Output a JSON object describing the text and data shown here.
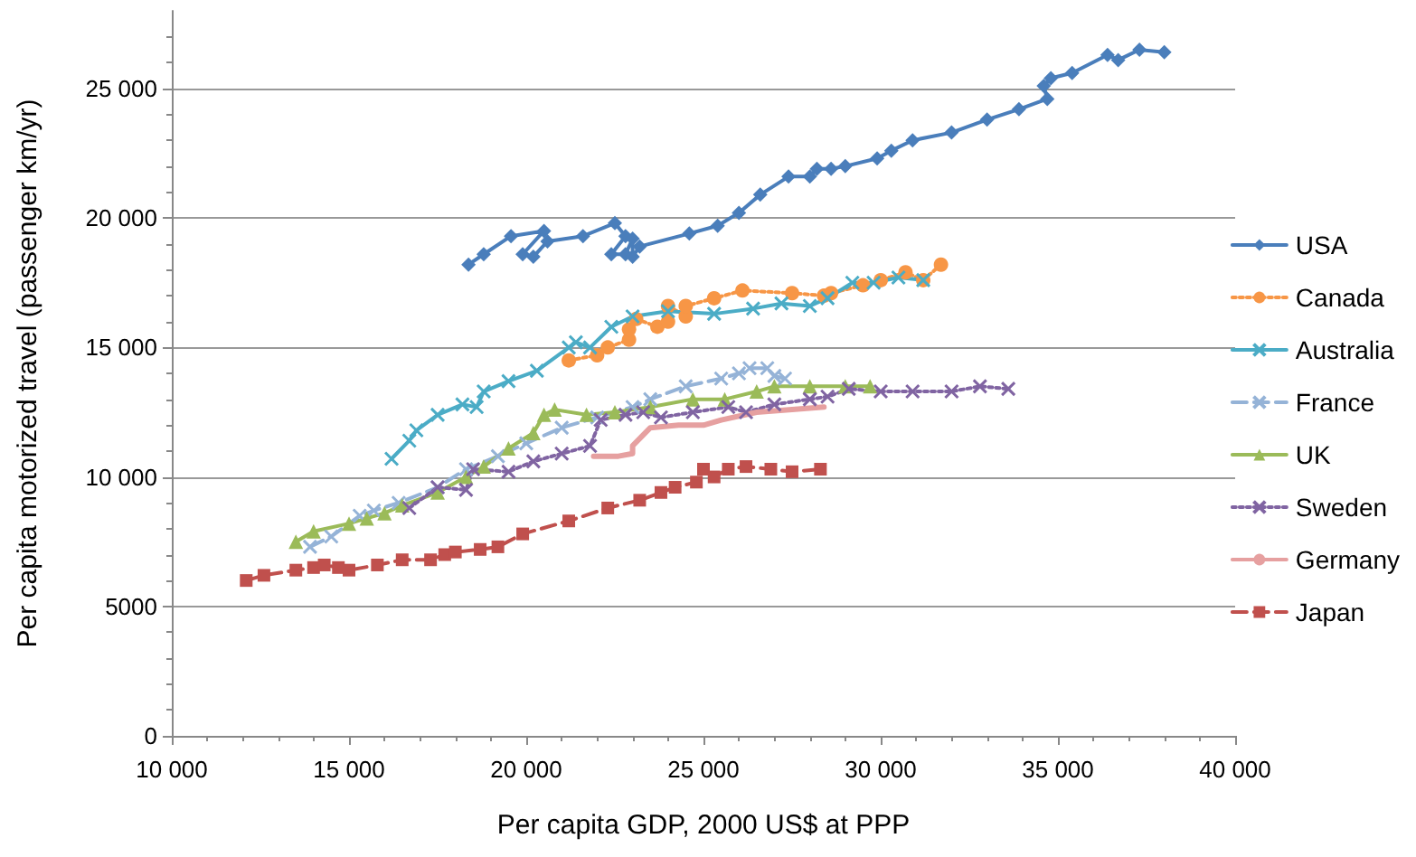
{
  "chart_data": {
    "type": "line",
    "xlabel": "Per capita GDP, 2000 US$ at PPP",
    "ylabel": "Per capita motorized travel (passenger km/yr)",
    "xlim": [
      10000,
      40000
    ],
    "xticks": [
      {
        "value": 10000,
        "label": "10 000"
      },
      {
        "value": 15000,
        "label": "15 000"
      },
      {
        "value": 20000,
        "label": "20 000"
      },
      {
        "value": 25000,
        "label": "25 000"
      },
      {
        "value": 30000,
        "label": "30 000"
      },
      {
        "value": 35000,
        "label": "35 000"
      },
      {
        "value": 40000,
        "label": "40 000"
      }
    ],
    "ylim": [
      0,
      28000
    ],
    "yticks": [
      0,
      5000,
      {
        "value": 10000,
        "label": "10 000"
      },
      {
        "value": 15000,
        "label": "15 000"
      },
      {
        "value": 20000,
        "label": "20 000"
      },
      {
        "value": 25000,
        "label": "25 000"
      }
    ],
    "grid": "y",
    "legend": "right",
    "series": [
      {
        "name": "USA",
        "color": "#4a7ebb",
        "marker": "diamond",
        "line_style": "solid",
        "x": [
          18370,
          18800,
          19570,
          20500,
          19900,
          20200,
          20600,
          21600,
          22500,
          22800,
          22400,
          22800,
          23000,
          23000,
          23200,
          24600,
          25400,
          26000,
          26600,
          27400,
          28000,
          28200,
          28600,
          29000,
          29900,
          30300,
          30900,
          32000,
          33000,
          33900,
          34700,
          34600,
          34800,
          35400,
          36400,
          36700,
          37300,
          38000
        ],
        "values": [
          18200,
          18600,
          19300,
          19500,
          18600,
          18500,
          19100,
          19300,
          19800,
          19300,
          18600,
          18600,
          19200,
          18500,
          18900,
          19400,
          19700,
          20200,
          20900,
          21600,
          21600,
          21900,
          21900,
          22000,
          22300,
          22600,
          23000,
          23300,
          23800,
          24200,
          24600,
          25100,
          25400,
          25600,
          26300,
          26100,
          26500,
          26400
        ]
      },
      {
        "name": "Canada",
        "color": "#f79646",
        "marker": "circle",
        "line_style": "dotted",
        "x": [
          21200,
          22000,
          22300,
          22900,
          22900,
          23100,
          23700,
          24000,
          24000,
          24500,
          24500,
          25300,
          26100,
          27500,
          28400,
          28600,
          29500,
          30000,
          30700,
          31200,
          31700
        ],
        "values": [
          14500,
          14700,
          15000,
          15300,
          15700,
          16100,
          15800,
          16000,
          16600,
          16200,
          16600,
          16900,
          17200,
          17100,
          17000,
          17100,
          17400,
          17600,
          17900,
          17600,
          18200
        ]
      },
      {
        "name": "Australia",
        "color": "#4bacc6",
        "marker": "cross",
        "line_style": "solid",
        "x": [
          16200,
          16700,
          16900,
          17500,
          18200,
          18600,
          18800,
          19500,
          20300,
          21200,
          21400,
          21800,
          22400,
          23000,
          24000,
          25300,
          26400,
          27200,
          28000,
          28500,
          29200,
          29800,
          30500,
          31200
        ],
        "values": [
          10700,
          11400,
          11800,
          12400,
          12800,
          12700,
          13300,
          13700,
          14100,
          15000,
          15200,
          15000,
          15800,
          16200,
          16400,
          16300,
          16500,
          16700,
          16600,
          16900,
          17500,
          17500,
          17700,
          17600
        ]
      },
      {
        "name": "France",
        "color": "#95b3d7",
        "marker": "cross",
        "line_style": "dashed",
        "x": [
          13900,
          14500,
          15300,
          15700,
          16400,
          17500,
          18300,
          19200,
          20000,
          21000,
          22000,
          23000,
          23500,
          24500,
          25500,
          26000,
          26300,
          26800,
          27000,
          27300
        ],
        "values": [
          7300,
          7700,
          8500,
          8700,
          9000,
          9600,
          10300,
          10800,
          11300,
          11900,
          12300,
          12700,
          13000,
          13500,
          13800,
          14000,
          14200,
          14200,
          13900,
          13800
        ]
      },
      {
        "name": "UK",
        "color": "#9bbb59",
        "marker": "triangle",
        "line_style": "solid",
        "x": [
          13500,
          14000,
          15000,
          15500,
          16000,
          16500,
          17500,
          18300,
          18800,
          19500,
          20200,
          20500,
          20800,
          21700,
          22500,
          23500,
          24700,
          25600,
          26500,
          27000,
          28000,
          29000,
          29700
        ],
        "values": [
          7500,
          7900,
          8200,
          8400,
          8600,
          8900,
          9400,
          10000,
          10400,
          11100,
          11700,
          12400,
          12600,
          12400,
          12500,
          12700,
          13000,
          13000,
          13300,
          13500,
          13500,
          13500,
          13500
        ]
      },
      {
        "name": "Sweden",
        "color": "#8064a2",
        "marker": "cross",
        "line_style": "dotted",
        "x": [
          16700,
          17500,
          18300,
          18500,
          19500,
          20200,
          21000,
          21800,
          22100,
          22800,
          23300,
          23800,
          24700,
          25700,
          26200,
          27000,
          28000,
          28500,
          29100,
          30000,
          30900,
          32000,
          32800,
          33600
        ],
        "values": [
          8800,
          9600,
          9500,
          10300,
          10200,
          10600,
          10900,
          11200,
          12200,
          12400,
          12500,
          12300,
          12500,
          12700,
          12500,
          12800,
          13000,
          13100,
          13400,
          13300,
          13300,
          13300,
          13500,
          13400
        ]
      },
      {
        "name": "Germany",
        "color": "#e6a0a0",
        "marker": "none",
        "line_style": "solid",
        "x": [
          21900,
          22600,
          23000,
          23000,
          23500,
          24300,
          25000,
          25500,
          26500,
          27500,
          28400
        ],
        "values": [
          10800,
          10800,
          10900,
          11200,
          11900,
          12000,
          12000,
          12200,
          12500,
          12600,
          12700
        ]
      },
      {
        "name": "Japan",
        "color": "#c0504d",
        "marker": "square",
        "line_style": "dashed",
        "x": [
          12100,
          12600,
          13500,
          14000,
          14300,
          14700,
          15000,
          15800,
          16500,
          17300,
          17700,
          18000,
          18700,
          19200,
          19900,
          21200,
          22300,
          23200,
          23800,
          24200,
          24800,
          25000,
          25300,
          25700,
          26200,
          26900,
          27500,
          28300
        ],
        "values": [
          6000,
          6200,
          6400,
          6500,
          6600,
          6500,
          6400,
          6600,
          6800,
          6800,
          7000,
          7100,
          7200,
          7300,
          7800,
          8300,
          8800,
          9100,
          9400,
          9600,
          9800,
          10300,
          10000,
          10300,
          10400,
          10300,
          10200,
          10300
        ]
      }
    ]
  }
}
